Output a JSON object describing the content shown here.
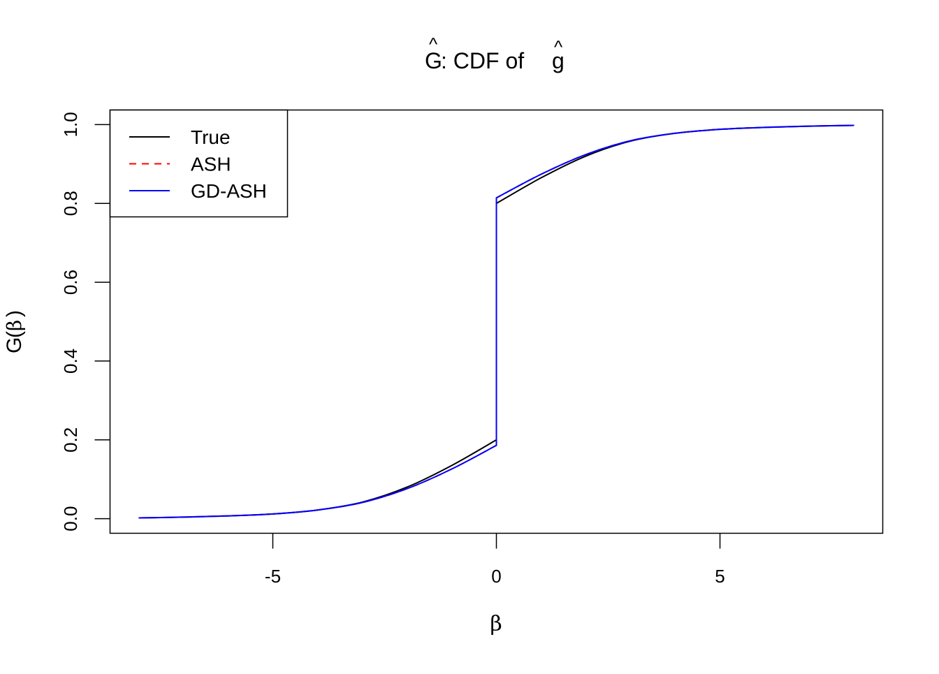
{
  "chart_data": {
    "type": "line",
    "title": "Ĝ: CDF of ĝ",
    "title_parts": {
      "G": "G",
      "rest": ": CDF of ",
      "g": "g",
      "hat": "^"
    },
    "xlabel": "β",
    "ylabel": "Ĝ(β)",
    "ylabel_parts": {
      "G": "G",
      "open": "(",
      "beta": "β",
      "close": ")"
    },
    "xlim": [
      -8.64,
      8.64
    ],
    "ylim": [
      -0.037,
      1.037
    ],
    "xticks": [
      -5,
      0,
      5
    ],
    "xtick_labels": [
      "-5",
      "0",
      "5"
    ],
    "yticks": [
      0,
      0.2,
      0.4,
      0.6,
      0.8,
      1.0
    ],
    "ytick_labels": [
      "0.0",
      "0.2",
      "0.4",
      "0.6",
      "0.8",
      "1.0"
    ],
    "grid": false,
    "legend_position": "top-left",
    "series": [
      {
        "name": "True",
        "color": "#000000",
        "dash": "solid",
        "x": [
          -8,
          -7,
          -6,
          -5,
          -4,
          -3,
          -2,
          -1,
          0,
          0,
          1,
          2,
          3,
          4,
          5,
          6,
          7,
          8
        ],
        "y": [
          0.002,
          0.004,
          0.007,
          0.012,
          0.022,
          0.042,
          0.08,
          0.135,
          0.2,
          0.8,
          0.865,
          0.92,
          0.958,
          0.978,
          0.988,
          0.993,
          0.996,
          0.998
        ]
      },
      {
        "name": "ASH",
        "color": "#ff0000",
        "dash": "dashed",
        "x": [
          -8,
          -7,
          -6,
          -5,
          -4,
          -3,
          -2,
          -1,
          0,
          0,
          1,
          2,
          3,
          4,
          5,
          6,
          7,
          8
        ],
        "y": [
          0.002,
          0.004,
          0.007,
          0.012,
          0.022,
          0.041,
          0.076,
          0.126,
          0.186,
          0.814,
          0.874,
          0.924,
          0.959,
          0.978,
          0.988,
          0.993,
          0.996,
          0.998
        ]
      },
      {
        "name": "GD-ASH",
        "color": "#0000ff",
        "dash": "solid",
        "x": [
          -8,
          -7,
          -6,
          -5,
          -4,
          -3,
          -2,
          -1,
          0,
          0,
          1,
          2,
          3,
          4,
          5,
          6,
          7,
          8
        ],
        "y": [
          0.002,
          0.004,
          0.007,
          0.012,
          0.022,
          0.041,
          0.076,
          0.126,
          0.186,
          0.814,
          0.874,
          0.924,
          0.959,
          0.978,
          0.988,
          0.993,
          0.996,
          0.998
        ]
      }
    ]
  }
}
